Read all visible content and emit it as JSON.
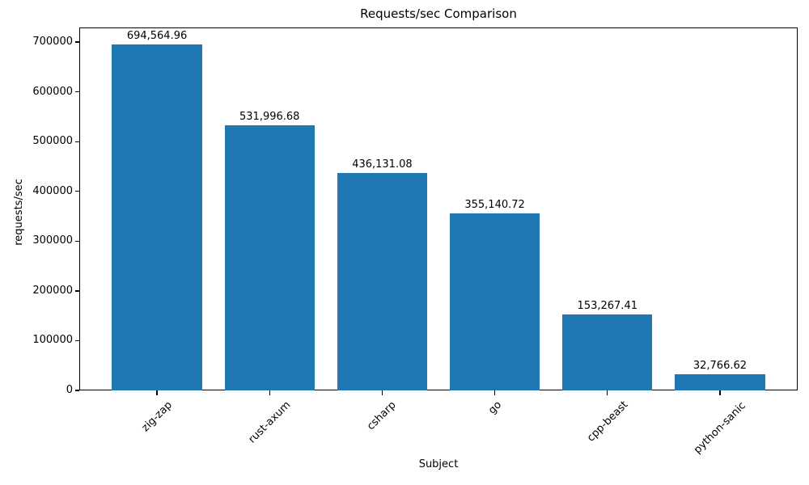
{
  "chart_data": {
    "type": "bar",
    "title": "Requests/sec Comparison",
    "xlabel": "Subject",
    "ylabel": "requests/sec",
    "categories": [
      "zig-zap",
      "rust-axum",
      "csharp",
      "go",
      "cpp-beast",
      "python-sanic"
    ],
    "values": [
      694564.96,
      531996.68,
      436131.08,
      355140.72,
      153267.41,
      32766.62
    ],
    "value_labels": [
      "694,564.96",
      "531,996.68",
      "436,131.08",
      "355,140.72",
      "153,267.41",
      "32,766.62"
    ],
    "yticks": [
      0,
      100000,
      200000,
      300000,
      400000,
      500000,
      600000,
      700000
    ],
    "ytick_labels": [
      "0",
      "100000",
      "200000",
      "300000",
      "400000",
      "500000",
      "600000",
      "700000"
    ],
    "ylim": [
      0,
      729293
    ],
    "bar_color": "#1f77b4",
    "bar_relative_width": 0.8,
    "xtick_rotation_deg": 45,
    "grid": false,
    "legend": null
  }
}
